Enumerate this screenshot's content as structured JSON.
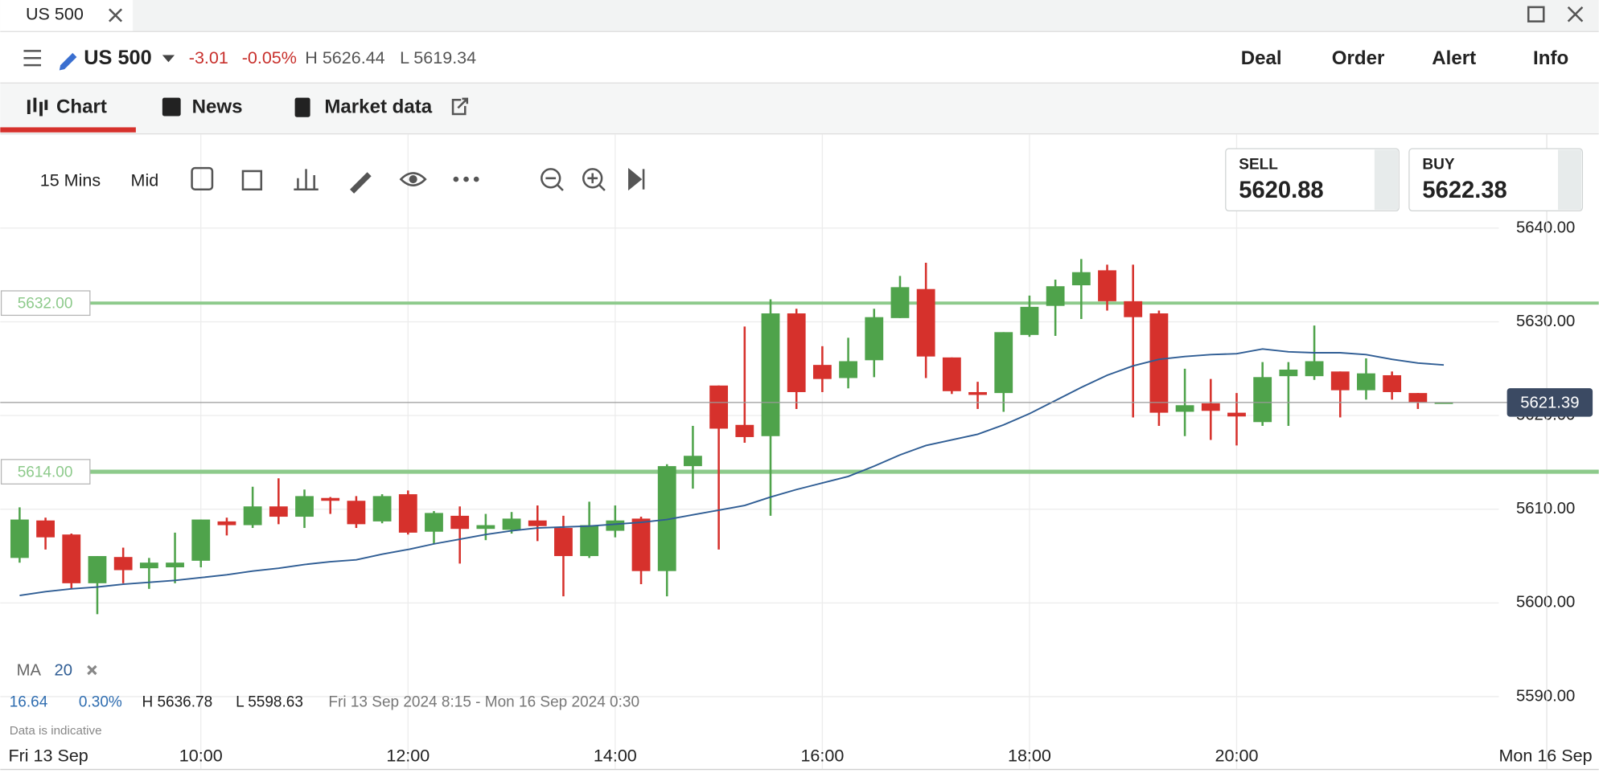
{
  "window": {
    "tab_title": "US 500"
  },
  "instrument": {
    "name": "US 500",
    "change": "-3.01",
    "change_pct": "-0.05%",
    "high": "H 5626.44",
    "low": "L 5619.34"
  },
  "nav": [
    "Deal",
    "Order",
    "Alert",
    "Info"
  ],
  "tabs": [
    "Chart",
    "News",
    "Market data"
  ],
  "toolbar": {
    "interval": "15 Mins",
    "price_type": "Mid"
  },
  "quote": {
    "sell_label": "SELL",
    "sell": "5620.88",
    "buy_label": "BUY",
    "buy": "5622.38"
  },
  "indicator_legend": {
    "label": "MA",
    "period": "20"
  },
  "summary": {
    "change": "16.64",
    "change_pct": "0.30%",
    "high": "H 5636.78",
    "low": "L 5598.63",
    "range": "Fri 13 Sep 2024 8:15 - Mon 16 Sep 2024 0:30"
  },
  "disclaimer": "Data is indicative",
  "chart_data": {
    "type": "candlestick",
    "categories": [
      null,
      null,
      null,
      null,
      null,
      null,
      null,
      "10:00",
      null,
      null,
      null,
      null,
      null,
      null,
      null,
      "12:00",
      null,
      null,
      null,
      null,
      null,
      null,
      null,
      "14:00",
      null,
      null,
      null,
      null,
      null,
      null,
      null,
      "16:00",
      null,
      null,
      null,
      null,
      null,
      null,
      null,
      "18:00",
      null,
      null,
      null,
      null,
      null,
      null,
      null,
      "20:00",
      null,
      null,
      null,
      null,
      null,
      null,
      null,
      null
    ],
    "edge_labels": [
      "Fri 13 Sep",
      "Mon 16 Sep"
    ],
    "open": [
      5604.8,
      5608.8,
      5607.3,
      5602.1,
      5604.9,
      5603.7,
      5603.8,
      5604.5,
      5608.7,
      5608.3,
      5610.3,
      5609.2,
      5611.2,
      5610.9,
      5608.7,
      5611.6,
      5607.6,
      5609.3,
      5607.9,
      5607.8,
      5608.8,
      5608.0,
      5605.0,
      5607.7,
      5609.0,
      5603.4,
      5614.6,
      5623.2,
      5619.0,
      5617.8,
      5630.9,
      5625.4,
      5624.0,
      5625.9,
      5630.4,
      5633.5,
      5626.2,
      5622.5,
      5622.4,
      5628.6,
      5631.7,
      5633.9,
      5635.5,
      5632.2,
      5630.9,
      5620.4,
      5621.3,
      5620.3,
      5619.3,
      5624.2,
      5624.2,
      5624.7,
      5622.7,
      5624.3,
      5622.4,
      5621.4
    ],
    "high": [
      5610.2,
      5609.1,
      5607.4,
      5605.0,
      5605.9,
      5604.8,
      5607.5,
      5608.9,
      5609.1,
      5612.4,
      5613.3,
      5612.1,
      5611.3,
      5611.4,
      5611.6,
      5612.0,
      5609.8,
      5610.3,
      5609.5,
      5609.7,
      5610.4,
      5609.3,
      5610.8,
      5610.4,
      5609.2,
      5614.8,
      5618.9,
      5623.2,
      5629.5,
      5632.4,
      5631.4,
      5627.4,
      5628.3,
      5631.4,
      5634.9,
      5636.3,
      5626.2,
      5623.6,
      5628.9,
      5632.8,
      5634.5,
      5636.7,
      5636.1,
      5636.1,
      5631.2,
      5625.0,
      5623.9,
      5622.4,
      5625.7,
      5625.7,
      5629.6,
      5624.7,
      5626.1,
      5624.7,
      5622.4,
      5621.4
    ],
    "low": [
      5604.3,
      5605.7,
      5601.5,
      5598.8,
      5602.1,
      5601.5,
      5602.1,
      5603.8,
      5607.2,
      5608.0,
      5608.4,
      5608.0,
      5609.5,
      5608.0,
      5608.5,
      5607.3,
      5606.3,
      5604.2,
      5606.7,
      5607.4,
      5606.6,
      5600.7,
      5604.8,
      5607.0,
      5602.0,
      5600.7,
      5612.2,
      5605.7,
      5617.1,
      5609.3,
      5620.7,
      5622.5,
      5622.9,
      5624.1,
      5630.4,
      5624.0,
      5622.3,
      5620.7,
      5620.4,
      5628.4,
      5628.5,
      5630.3,
      5631.2,
      5619.8,
      5618.9,
      5617.8,
      5617.4,
      5616.8,
      5618.9,
      5618.9,
      5623.8,
      5619.8,
      5621.7,
      5621.7,
      5620.7,
      5621.4
    ],
    "close": [
      5608.9,
      5607.0,
      5602.1,
      5605.0,
      5603.5,
      5604.3,
      5604.3,
      5608.9,
      5608.3,
      5610.3,
      5609.2,
      5611.4,
      5610.9,
      5608.4,
      5611.4,
      5607.5,
      5609.6,
      5607.9,
      5608.3,
      5609.0,
      5608.2,
      5605.0,
      5608.3,
      5608.8,
      5603.4,
      5614.6,
      5615.7,
      5618.6,
      5617.7,
      5630.9,
      5622.5,
      5623.9,
      5625.8,
      5630.5,
      5633.7,
      5626.3,
      5622.6,
      5622.2,
      5628.9,
      5631.6,
      5633.8,
      5635.3,
      5632.2,
      5630.5,
      5620.3,
      5621.1,
      5620.5,
      5619.9,
      5624.1,
      5624.9,
      5625.8,
      5622.7,
      5624.5,
      5622.5,
      5621.4,
      5621.4
    ],
    "up_color": "#4fa34b",
    "down_color": "#d6312c",
    "moving_average": {
      "color": "#2f5d94",
      "values": [
        5600.8,
        5601.2,
        5601.5,
        5601.7,
        5602.0,
        5602.2,
        5602.4,
        5602.7,
        5603.0,
        5603.4,
        5603.7,
        5604.1,
        5604.4,
        5604.6,
        5605.2,
        5605.7,
        5606.3,
        5606.8,
        5607.3,
        5607.7,
        5608.0,
        5608.1,
        5608.2,
        5608.4,
        5608.6,
        5608.9,
        5609.4,
        5609.9,
        5610.4,
        5611.3,
        5612.1,
        5612.8,
        5613.5,
        5614.6,
        5615.8,
        5616.8,
        5617.4,
        5618.0,
        5619.0,
        5620.2,
        5621.6,
        5623.0,
        5624.3,
        5625.3,
        5626.0,
        5626.3,
        5626.5,
        5626.6,
        5627.1,
        5626.8,
        5626.7,
        5626.7,
        5626.5,
        5626.0,
        5625.6,
        5625.4
      ]
    },
    "levels": [
      {
        "value": 5632,
        "label": "5632.00",
        "color": "#8dca8b"
      },
      {
        "value": 5614,
        "label": "5614.00",
        "color": "#8dca8b"
      }
    ],
    "current_price": 5621.39,
    "ylim": [
      5582,
      5650
    ],
    "yticks": [
      {
        "value": 5590,
        "label": "5590.00"
      },
      {
        "value": 5600,
        "label": "5600.00"
      },
      {
        "value": 5610,
        "label": "5610.00"
      },
      {
        "value": 5620,
        "label": "5620.00"
      },
      {
        "value": 5630,
        "label": "5630.00"
      },
      {
        "value": 5640,
        "label": "5640.00"
      }
    ],
    "grid": true
  }
}
